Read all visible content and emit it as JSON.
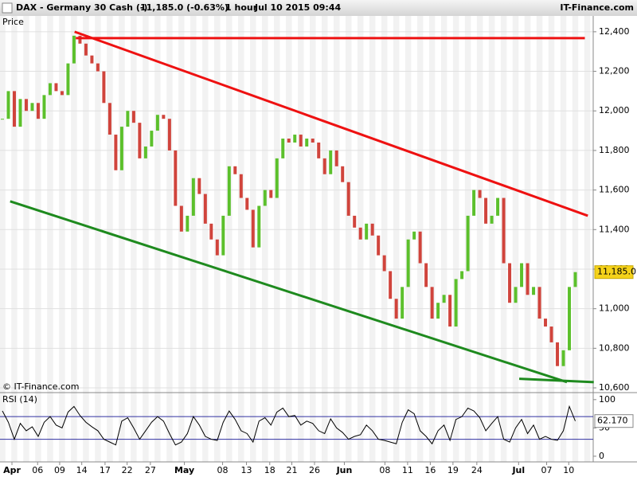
{
  "header": {
    "title": "DAX - Germany 30 Cash (-)",
    "quote": "11,185.0 (-0.63%)",
    "interval": "1 hour",
    "timestamp": "Jul 10 2015 09:44",
    "brand": "IT-Finance.com"
  },
  "chart_data": [
    {
      "type": "line",
      "title": "Price",
      "footnote": "© IT-Finance.com",
      "x": [
        0,
        1,
        2,
        3,
        4,
        5,
        6,
        7,
        8,
        9,
        10,
        11,
        12,
        13,
        14,
        15,
        16,
        17,
        18,
        19,
        20,
        21,
        22,
        23,
        24,
        25,
        26,
        27,
        28,
        29,
        30,
        31,
        32,
        33,
        34,
        35,
        36,
        37,
        38,
        39,
        40,
        41,
        42,
        43,
        44,
        45,
        46,
        47,
        48,
        49,
        50,
        51,
        52,
        53,
        54,
        55,
        56,
        57,
        58,
        59,
        60,
        61,
        62,
        63,
        64,
        65,
        66,
        67,
        68,
        69,
        70,
        71,
        72,
        73,
        74,
        75,
        76,
        77,
        78,
        79,
        80,
        81,
        82,
        83,
        84,
        85,
        86,
        87,
        88,
        89,
        90,
        91,
        92,
        93,
        94,
        95,
        96
      ],
      "series": [
        {
          "name": "DAX",
          "up_color": "#5cc02c",
          "down_color": "#d0443c",
          "values": [
            11960,
            12100,
            11920,
            12060,
            12000,
            12040,
            11960,
            12080,
            12140,
            12100,
            12080,
            12240,
            12380,
            12340,
            12280,
            12240,
            12200,
            12040,
            11880,
            11700,
            11920,
            12000,
            11940,
            11760,
            11820,
            11900,
            11980,
            11960,
            11800,
            11520,
            11390,
            11470,
            11660,
            11580,
            11430,
            11350,
            11270,
            11470,
            11720,
            11680,
            11560,
            11500,
            11310,
            11520,
            11600,
            11560,
            11760,
            11860,
            11840,
            11880,
            11820,
            11860,
            11840,
            11760,
            11680,
            11800,
            11720,
            11640,
            11470,
            11410,
            11350,
            11430,
            11370,
            11270,
            11190,
            11050,
            10950,
            11110,
            11350,
            11390,
            11230,
            11110,
            10950,
            11030,
            11070,
            10910,
            11150,
            11190,
            11470,
            11600,
            11560,
            11430,
            11470,
            11560,
            11230,
            11030,
            11110,
            11230,
            11070,
            11110,
            10950,
            10910,
            10830,
            10710,
            10790,
            11110,
            11185
          ],
          "last_label": "11,185.0"
        }
      ],
      "annotations": [
        {
          "color": "#ee1111",
          "x": [
            12.1,
            98.1
          ],
          "values": [
            12400,
            11470
          ]
        },
        {
          "color": "#ee1111",
          "x": [
            12.3,
            97.6
          ],
          "values": [
            12368,
            12368
          ]
        },
        {
          "color": "#1e8a1e",
          "x": [
            1.3,
            94.6
          ],
          "values": [
            11543,
            10629
          ]
        },
        {
          "color": "#1e8a1e",
          "x": [
            86.6,
            99.1
          ],
          "values": [
            10646,
            10629
          ]
        }
      ],
      "xlim": [
        -0.4,
        99
      ],
      "ylim": [
        10580,
        12480
      ],
      "yticks": [
        {
          "value": 10600,
          "label": "10,600"
        },
        {
          "value": 10800,
          "label": "10,800"
        },
        {
          "value": 11000,
          "label": "11,000"
        },
        {
          "value": 11200,
          "label": "11,200"
        },
        {
          "value": 11400,
          "label": "11,400"
        },
        {
          "value": 11600,
          "label": "11,600"
        },
        {
          "value": 11800,
          "label": "11,800"
        },
        {
          "value": 12000,
          "label": "12,000"
        },
        {
          "value": 12200,
          "label": "12,200"
        },
        {
          "value": 12400,
          "label": "12,400"
        }
      ],
      "grid": true
    },
    {
      "type": "line",
      "title": "RSI (14)",
      "x": [
        0,
        1,
        2,
        3,
        4,
        5,
        6,
        7,
        8,
        9,
        10,
        11,
        12,
        13,
        14,
        15,
        16,
        17,
        18,
        19,
        20,
        21,
        22,
        23,
        24,
        25,
        26,
        27,
        28,
        29,
        30,
        31,
        32,
        33,
        34,
        35,
        36,
        37,
        38,
        39,
        40,
        41,
        42,
        43,
        44,
        45,
        46,
        47,
        48,
        49,
        50,
        51,
        52,
        53,
        54,
        55,
        56,
        57,
        58,
        59,
        60,
        61,
        62,
        63,
        64,
        65,
        66,
        67,
        68,
        69,
        70,
        71,
        72,
        73,
        74,
        75,
        76,
        77,
        78,
        79,
        80,
        81,
        82,
        83,
        84,
        85,
        86,
        87,
        88,
        89,
        90,
        91,
        92,
        93,
        94,
        95,
        96
      ],
      "series": [
        {
          "name": "RSI",
          "color": "#000000",
          "values": [
            80,
            60,
            30,
            58,
            45,
            52,
            35,
            60,
            70,
            55,
            50,
            78,
            88,
            72,
            60,
            52,
            45,
            30,
            25,
            20,
            62,
            68,
            50,
            30,
            45,
            60,
            70,
            62,
            40,
            20,
            25,
            40,
            70,
            55,
            35,
            30,
            28,
            60,
            80,
            65,
            45,
            40,
            25,
            62,
            68,
            55,
            78,
            85,
            70,
            72,
            55,
            62,
            58,
            45,
            40,
            66,
            50,
            42,
            30,
            35,
            38,
            55,
            45,
            30,
            28,
            25,
            22,
            60,
            82,
            75,
            45,
            35,
            22,
            45,
            55,
            28,
            65,
            70,
            85,
            80,
            68,
            45,
            58,
            70,
            30,
            25,
            50,
            65,
            40,
            55,
            30,
            35,
            30,
            28,
            45,
            88,
            62.17
          ],
          "last_label": "62.170"
        }
      ],
      "levels": [
        30,
        70
      ],
      "xlim": [
        -0.4,
        99
      ],
      "ylim": [
        -10,
        111
      ],
      "yticks": [
        0,
        50,
        100
      ],
      "xticks": [
        {
          "value": 1.6,
          "label": "Apr"
        },
        {
          "value": 5.9,
          "label": "06"
        },
        {
          "value": 9.6,
          "label": "09"
        },
        {
          "value": 13.3,
          "label": "14"
        },
        {
          "value": 17.2,
          "label": "17"
        },
        {
          "value": 20.9,
          "label": "22"
        },
        {
          "value": 24.8,
          "label": "27"
        },
        {
          "value": 30.5,
          "label": "May"
        },
        {
          "value": 36.9,
          "label": "08"
        },
        {
          "value": 40.9,
          "label": "13"
        },
        {
          "value": 44.8,
          "label": "18"
        },
        {
          "value": 48.5,
          "label": "21"
        },
        {
          "value": 52.3,
          "label": "26"
        },
        {
          "value": 57.3,
          "label": "Jun"
        },
        {
          "value": 64.1,
          "label": "08"
        },
        {
          "value": 67.9,
          "label": "11"
        },
        {
          "value": 71.7,
          "label": "16"
        },
        {
          "value": 75.5,
          "label": "19"
        },
        {
          "value": 79.5,
          "label": "24"
        },
        {
          "value": 86.5,
          "label": "Jul"
        },
        {
          "value": 91.2,
          "label": "07"
        },
        {
          "value": 94.9,
          "label": "10"
        }
      ]
    }
  ]
}
